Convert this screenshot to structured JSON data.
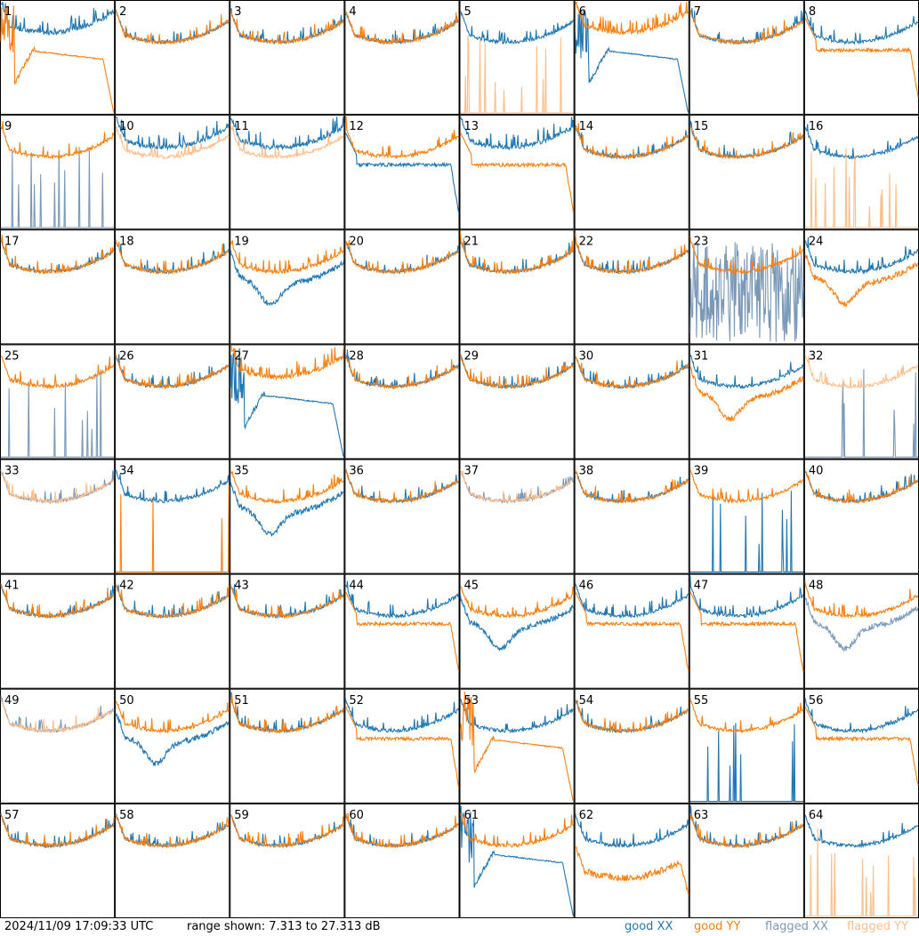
{
  "timestamp": "2024/11/09 17:09:33 UTC",
  "range_text": "range shown: 7.313 to 27.313 dB",
  "colors": {
    "good_xx": "#1f77b4",
    "good_yy": "#ff7f0e",
    "flagged_xx": "#7a99b8",
    "flagged_yy": "#ffbe8a"
  },
  "legend": {
    "good_xx": "good XX",
    "good_yy": "good YY",
    "flagged_xx": "flagged XX",
    "flagged_yy": "flagged YY"
  },
  "chart_data": {
    "type": "line",
    "layout": "small-multiples 8x8",
    "ylim": [
      7.313,
      27.313
    ],
    "yunit": "dB",
    "series_kinds": [
      "XX",
      "YY"
    ],
    "panels": [
      {
        "label": "1",
        "xx": "good",
        "yy": "good",
        "xx_shape": "rise",
        "yy_shape": "hump"
      },
      {
        "label": "2",
        "xx": "good",
        "yy": "good",
        "xx_shape": "normal",
        "yy_shape": "normal"
      },
      {
        "label": "3",
        "xx": "good",
        "yy": "good",
        "xx_shape": "normal",
        "yy_shape": "normal"
      },
      {
        "label": "4",
        "xx": "good",
        "yy": "good",
        "xx_shape": "normal",
        "yy_shape": "normal"
      },
      {
        "label": "5",
        "xx": "good",
        "yy": "flagged",
        "xx_shape": "normal",
        "yy_shape": "spikes"
      },
      {
        "label": "6",
        "xx": "good",
        "yy": "good",
        "xx_shape": "hump",
        "yy_shape": "rise"
      },
      {
        "label": "7",
        "xx": "good",
        "yy": "good",
        "xx_shape": "normal",
        "yy_shape": "normal"
      },
      {
        "label": "8",
        "xx": "good",
        "yy": "good",
        "xx_shape": "normal",
        "yy_shape": "flatlow"
      },
      {
        "label": "9",
        "xx": "flagged",
        "yy": "good",
        "xx_shape": "spikes",
        "yy_shape": "normal"
      },
      {
        "label": "10",
        "xx": "good",
        "yy": "flagged",
        "xx_shape": "rise",
        "yy_shape": "normal"
      },
      {
        "label": "11",
        "xx": "good",
        "yy": "flagged",
        "xx_shape": "rise",
        "yy_shape": "normal"
      },
      {
        "label": "12",
        "xx": "good",
        "yy": "good",
        "xx_shape": "flatlow",
        "yy_shape": "normal"
      },
      {
        "label": "13",
        "xx": "good",
        "yy": "good",
        "xx_shape": "rise",
        "yy_shape": "flatlow"
      },
      {
        "label": "14",
        "xx": "good",
        "yy": "good",
        "xx_shape": "normal",
        "yy_shape": "normal"
      },
      {
        "label": "15",
        "xx": "good",
        "yy": "good",
        "xx_shape": "normal",
        "yy_shape": "normal"
      },
      {
        "label": "16",
        "xx": "good",
        "yy": "flagged",
        "xx_shape": "normal",
        "yy_shape": "spikes"
      },
      {
        "label": "17",
        "xx": "good",
        "yy": "good",
        "xx_shape": "normal",
        "yy_shape": "normal"
      },
      {
        "label": "18",
        "xx": "good",
        "yy": "good",
        "xx_shape": "normal",
        "yy_shape": "normal"
      },
      {
        "label": "19",
        "xx": "good",
        "yy": "good",
        "xx_shape": "deep",
        "yy_shape": "normal"
      },
      {
        "label": "20",
        "xx": "good",
        "yy": "good",
        "xx_shape": "normal",
        "yy_shape": "normal"
      },
      {
        "label": "21",
        "xx": "good",
        "yy": "good",
        "xx_shape": "normal",
        "yy_shape": "normal"
      },
      {
        "label": "22",
        "xx": "good",
        "yy": "good",
        "xx_shape": "normal",
        "yy_shape": "normal"
      },
      {
        "label": "23",
        "xx": "flagged",
        "yy": "good",
        "xx_shape": "noise",
        "yy_shape": "normal"
      },
      {
        "label": "24",
        "xx": "good",
        "yy": "good",
        "xx_shape": "normal",
        "yy_shape": "deep"
      },
      {
        "label": "25",
        "xx": "flagged",
        "yy": "good",
        "xx_shape": "spikes",
        "yy_shape": "normal"
      },
      {
        "label": "26",
        "xx": "good",
        "yy": "good",
        "xx_shape": "normal",
        "yy_shape": "normal"
      },
      {
        "label": "27",
        "xx": "good",
        "yy": "good",
        "xx_shape": "hump",
        "yy_shape": "rise"
      },
      {
        "label": "28",
        "xx": "good",
        "yy": "good",
        "xx_shape": "normal",
        "yy_shape": "normal"
      },
      {
        "label": "29",
        "xx": "good",
        "yy": "good",
        "xx_shape": "normal",
        "yy_shape": "normal"
      },
      {
        "label": "30",
        "xx": "good",
        "yy": "good",
        "xx_shape": "normal",
        "yy_shape": "normal"
      },
      {
        "label": "31",
        "xx": "good",
        "yy": "good",
        "xx_shape": "normal",
        "yy_shape": "deep"
      },
      {
        "label": "32",
        "xx": "flagged",
        "yy": "flagged",
        "xx_shape": "spikes",
        "yy_shape": "normal"
      },
      {
        "label": "33",
        "xx": "flagged",
        "yy": "flagged",
        "xx_shape": "normal",
        "yy_shape": "normal"
      },
      {
        "label": "34",
        "xx": "good",
        "yy": "good",
        "xx_shape": "normal",
        "yy_shape": "spikes"
      },
      {
        "label": "35",
        "xx": "good",
        "yy": "good",
        "xx_shape": "deep",
        "yy_shape": "normal"
      },
      {
        "label": "36",
        "xx": "good",
        "yy": "good",
        "xx_shape": "normal",
        "yy_shape": "normal"
      },
      {
        "label": "37",
        "xx": "flagged",
        "yy": "flagged",
        "xx_shape": "normal",
        "yy_shape": "normal"
      },
      {
        "label": "38",
        "xx": "good",
        "yy": "good",
        "xx_shape": "normal",
        "yy_shape": "normal"
      },
      {
        "label": "39",
        "xx": "good",
        "yy": "good",
        "xx_shape": "spikes",
        "yy_shape": "normal"
      },
      {
        "label": "40",
        "xx": "good",
        "yy": "good",
        "xx_shape": "normal",
        "yy_shape": "normal"
      },
      {
        "label": "41",
        "xx": "good",
        "yy": "good",
        "xx_shape": "normal",
        "yy_shape": "normal"
      },
      {
        "label": "42",
        "xx": "good",
        "yy": "good",
        "xx_shape": "normal",
        "yy_shape": "normal"
      },
      {
        "label": "43",
        "xx": "good",
        "yy": "good",
        "xx_shape": "normal",
        "yy_shape": "normal"
      },
      {
        "label": "44",
        "xx": "good",
        "yy": "good",
        "xx_shape": "normal",
        "yy_shape": "flatlow"
      },
      {
        "label": "45",
        "xx": "good",
        "yy": "good",
        "xx_shape": "deep",
        "yy_shape": "normal"
      },
      {
        "label": "46",
        "xx": "good",
        "yy": "good",
        "xx_shape": "normal",
        "yy_shape": "flatlow"
      },
      {
        "label": "47",
        "xx": "good",
        "yy": "good",
        "xx_shape": "normal",
        "yy_shape": "flatlow"
      },
      {
        "label": "48",
        "xx": "flagged",
        "yy": "good",
        "xx_shape": "deep",
        "yy_shape": "normal"
      },
      {
        "label": "49",
        "xx": "flagged",
        "yy": "flagged",
        "xx_shape": "normal",
        "yy_shape": "normal"
      },
      {
        "label": "50",
        "xx": "good",
        "yy": "good",
        "xx_shape": "deep",
        "yy_shape": "normal"
      },
      {
        "label": "51",
        "xx": "good",
        "yy": "good",
        "xx_shape": "normal",
        "yy_shape": "normal"
      },
      {
        "label": "52",
        "xx": "good",
        "yy": "good",
        "xx_shape": "normal",
        "yy_shape": "flatlow"
      },
      {
        "label": "53",
        "xx": "good",
        "yy": "good",
        "xx_shape": "normal",
        "yy_shape": "hump"
      },
      {
        "label": "54",
        "xx": "good",
        "yy": "good",
        "xx_shape": "normal",
        "yy_shape": "normal"
      },
      {
        "label": "55",
        "xx": "good",
        "yy": "good",
        "xx_shape": "spikes",
        "yy_shape": "normal"
      },
      {
        "label": "56",
        "xx": "good",
        "yy": "good",
        "xx_shape": "normal",
        "yy_shape": "flatlow"
      },
      {
        "label": "57",
        "xx": "good",
        "yy": "good",
        "xx_shape": "normal",
        "yy_shape": "normal"
      },
      {
        "label": "58",
        "xx": "good",
        "yy": "good",
        "xx_shape": "normal",
        "yy_shape": "normal"
      },
      {
        "label": "59",
        "xx": "good",
        "yy": "good",
        "xx_shape": "normal",
        "yy_shape": "normal"
      },
      {
        "label": "60",
        "xx": "good",
        "yy": "good",
        "xx_shape": "normal",
        "yy_shape": "normal"
      },
      {
        "label": "61",
        "xx": "good",
        "yy": "good",
        "xx_shape": "hump",
        "yy_shape": "normal"
      },
      {
        "label": "62",
        "xx": "good",
        "yy": "good",
        "xx_shape": "normal",
        "yy_shape": "deeplow"
      },
      {
        "label": "63",
        "xx": "good",
        "yy": "good",
        "xx_shape": "normal",
        "yy_shape": "normal"
      },
      {
        "label": "64",
        "xx": "good",
        "yy": "flagged",
        "xx_shape": "normal",
        "yy_shape": "spikes"
      }
    ]
  }
}
